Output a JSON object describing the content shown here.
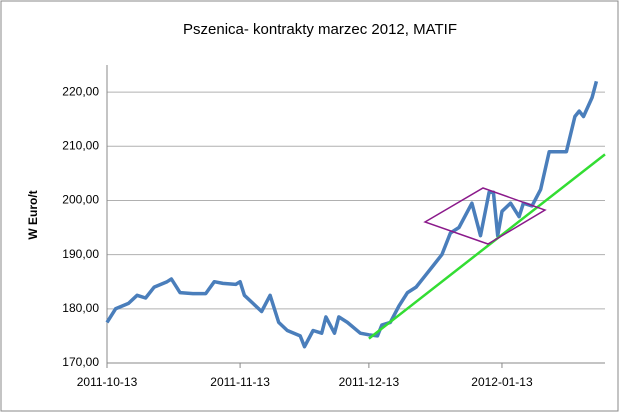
{
  "chart_data": {
    "type": "line",
    "title": "Pszenica- kontrakty marzec 2012, MATIF",
    "y_label": "W Euro/t",
    "x": [
      "2011-10-13",
      "2011-10-15",
      "2011-10-18",
      "2011-10-20",
      "2011-10-22",
      "2011-10-24",
      "2011-10-27",
      "2011-10-28",
      "2011-10-30",
      "2011-11-02",
      "2011-11-05",
      "2011-11-07",
      "2011-11-09",
      "2011-11-12",
      "2011-11-13",
      "2011-11-14",
      "2011-11-16",
      "2011-11-18",
      "2011-11-20",
      "2011-11-22",
      "2011-11-24",
      "2011-11-27",
      "2011-11-28",
      "2011-11-30",
      "2011-12-02",
      "2011-12-03",
      "2011-12-05",
      "2011-12-06",
      "2011-12-08",
      "2011-12-11",
      "2011-12-13",
      "2011-12-15",
      "2011-12-16",
      "2011-12-18",
      "2011-12-20",
      "2011-12-22",
      "2011-12-24",
      "2011-12-26",
      "2011-12-28",
      "2011-12-30",
      "2012-01-01",
      "2012-01-03",
      "2012-01-06",
      "2012-01-08",
      "2012-01-10",
      "2012-01-11",
      "2012-01-12",
      "2012-01-13",
      "2012-01-15",
      "2012-01-17",
      "2012-01-18",
      "2012-01-20",
      "2012-01-22",
      "2012-01-24",
      "2012-01-25",
      "2012-01-28",
      "2012-01-30",
      "2012-01-31",
      "2012-02-01",
      "2012-02-03",
      "2012-02-04"
    ],
    "series": [
      {
        "color": "#4a7ebb",
        "values": [
          177.5,
          180,
          181,
          182.5,
          182,
          184,
          185,
          185.5,
          183,
          182.8,
          182.8,
          185,
          184.7,
          184.5,
          185,
          182.5,
          181,
          179.5,
          182.5,
          177.5,
          176,
          175,
          173,
          176,
          175.5,
          178.5,
          175.5,
          178.5,
          177.5,
          175.5,
          175.2,
          175,
          177,
          177.5,
          180.5,
          183,
          184,
          186,
          188,
          190,
          194,
          195,
          199.5,
          193.5,
          201.5,
          201.5,
          193.5,
          198,
          199.5,
          197,
          199.5,
          199,
          202,
          209,
          209,
          209,
          215.5,
          216.5,
          215.5,
          219,
          222
        ]
      }
    ],
    "trend": {
      "color": "#33dd33",
      "x": [
        "2011-12-13",
        "2012-02-06"
      ],
      "values": [
        174.5,
        208.5
      ]
    },
    "xlim": [
      "2011-10-13",
      "2012-02-06"
    ],
    "xticks": [
      "2011-10-13",
      "2011-11-13",
      "2011-12-13",
      "2012-01-13"
    ],
    "ylim": [
      170,
      225
    ],
    "yticks": [
      {
        "value": 170,
        "label": "170,00"
      },
      {
        "value": 180,
        "label": "180,00"
      },
      {
        "value": 190,
        "label": "190,00"
      },
      {
        "value": 200,
        "label": "200,00"
      },
      {
        "value": 210,
        "label": "210,00"
      },
      {
        "value": 220,
        "label": "220,00"
      }
    ],
    "grid": true
  }
}
